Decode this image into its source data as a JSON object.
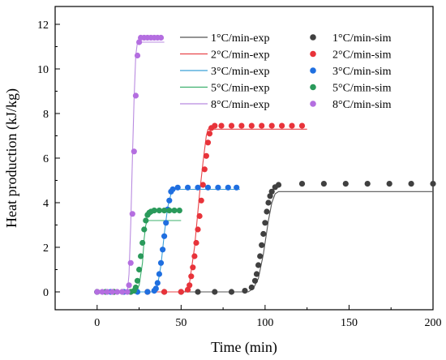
{
  "chart_data": {
    "type": "scatter",
    "xlabel": "Time (min)",
    "ylabel": "Heat production (kJ/kg)",
    "xlim": [
      -25,
      200
    ],
    "ylim": [
      -0.8,
      12.8
    ],
    "xticks": [
      0,
      50,
      100,
      150,
      200
    ],
    "yticks": [
      0,
      2,
      4,
      6,
      8,
      10,
      12
    ],
    "x_tick_labels": [
      "0",
      "50",
      "100",
      "150",
      "200"
    ],
    "y_tick_labels": [
      "0",
      "2",
      "4",
      "6",
      "8",
      "10",
      "12"
    ],
    "grid": false,
    "legend_placement": "top",
    "series": [
      {
        "name": "1°C/min-exp",
        "kind": "line",
        "color": "#555555",
        "points": [
          [
            0,
            0
          ],
          [
            90,
            0
          ],
          [
            93,
            0.15
          ],
          [
            96,
            0.6
          ],
          [
            99,
            1.7
          ],
          [
            102,
            3.2
          ],
          [
            104,
            4.0
          ],
          [
            106,
            4.4
          ],
          [
            108,
            4.5
          ],
          [
            200,
            4.5
          ]
        ]
      },
      {
        "name": "2°C/min-exp",
        "kind": "line",
        "color": "#e8454a",
        "points": [
          [
            0,
            0
          ],
          [
            52,
            0
          ],
          [
            55,
            0.4
          ],
          [
            58,
            2.0
          ],
          [
            61,
            4.4
          ],
          [
            63,
            5.8
          ],
          [
            65,
            7.0
          ],
          [
            66,
            7.3
          ],
          [
            125,
            7.3
          ]
        ]
      },
      {
        "name": "3°C/min-exp",
        "kind": "line",
        "color": "#3aa0d8",
        "points": [
          [
            0,
            0
          ],
          [
            34,
            0
          ],
          [
            36,
            0.3
          ],
          [
            38,
            1.2
          ],
          [
            40,
            2.6
          ],
          [
            42,
            3.8
          ],
          [
            44,
            4.4
          ],
          [
            45,
            4.6
          ],
          [
            85,
            4.6
          ]
        ]
      },
      {
        "name": "5°C/min-exp",
        "kind": "line",
        "color": "#3db06e",
        "points": [
          [
            0,
            0
          ],
          [
            23,
            0
          ],
          [
            25,
            0.3
          ],
          [
            27,
            1.3
          ],
          [
            28,
            2.4
          ],
          [
            29,
            3.0
          ],
          [
            30,
            3.2
          ],
          [
            50,
            3.2
          ]
        ]
      },
      {
        "name": "8°C/min-exp",
        "kind": "line",
        "color": "#b98be0",
        "points": [
          [
            0,
            0
          ],
          [
            18,
            0
          ],
          [
            19,
            0.8
          ],
          [
            20,
            3.0
          ],
          [
            21,
            6.0
          ],
          [
            22,
            8.6
          ],
          [
            23,
            10.6
          ],
          [
            24,
            11.2
          ],
          [
            25,
            11.2
          ],
          [
            40,
            11.2
          ]
        ]
      },
      {
        "name": "1°C/min-sim",
        "kind": "marker",
        "color": "#404040",
        "points": [
          [
            0,
            0
          ],
          [
            10,
            0
          ],
          [
            20,
            0
          ],
          [
            30,
            0
          ],
          [
            40,
            0
          ],
          [
            50,
            0
          ],
          [
            60,
            0
          ],
          [
            70,
            0
          ],
          [
            80,
            0
          ],
          [
            88,
            0.05
          ],
          [
            92,
            0.2
          ],
          [
            94,
            0.5
          ],
          [
            95,
            0.8
          ],
          [
            96,
            1.2
          ],
          [
            97,
            1.6
          ],
          [
            98,
            2.1
          ],
          [
            99,
            2.6
          ],
          [
            100,
            3.1
          ],
          [
            101,
            3.6
          ],
          [
            102,
            4.0
          ],
          [
            103,
            4.3
          ],
          [
            104,
            4.5
          ],
          [
            106,
            4.7
          ],
          [
            108,
            4.8
          ],
          [
            122,
            4.85
          ],
          [
            135,
            4.85
          ],
          [
            148,
            4.85
          ],
          [
            161,
            4.85
          ],
          [
            174,
            4.85
          ],
          [
            187,
            4.85
          ],
          [
            200,
            4.85
          ]
        ]
      },
      {
        "name": "2°C/min-sim",
        "kind": "marker",
        "color": "#e8333a",
        "points": [
          [
            0,
            0
          ],
          [
            10,
            0
          ],
          [
            20,
            0
          ],
          [
            30,
            0
          ],
          [
            40,
            0
          ],
          [
            50,
            0
          ],
          [
            54,
            0.1
          ],
          [
            55,
            0.3
          ],
          [
            56,
            0.7
          ],
          [
            57,
            1.1
          ],
          [
            58,
            1.6
          ],
          [
            59,
            2.2
          ],
          [
            60,
            2.8
          ],
          [
            61,
            3.4
          ],
          [
            62,
            4.1
          ],
          [
            63,
            4.8
          ],
          [
            64,
            5.5
          ],
          [
            65,
            6.1
          ],
          [
            66,
            6.7
          ],
          [
            67,
            7.1
          ],
          [
            68,
            7.35
          ],
          [
            70,
            7.45
          ],
          [
            74,
            7.45
          ],
          [
            80,
            7.45
          ],
          [
            86,
            7.45
          ],
          [
            92,
            7.45
          ],
          [
            98,
            7.45
          ],
          [
            104,
            7.45
          ],
          [
            110,
            7.45
          ],
          [
            116,
            7.45
          ],
          [
            122,
            7.45
          ]
        ]
      },
      {
        "name": "3°C/min-sim",
        "kind": "marker",
        "color": "#1f6fe0",
        "points": [
          [
            0,
            0
          ],
          [
            8,
            0
          ],
          [
            16,
            0
          ],
          [
            24,
            0
          ],
          [
            30,
            0
          ],
          [
            34,
            0.05
          ],
          [
            35,
            0.15
          ],
          [
            36,
            0.4
          ],
          [
            37,
            0.8
          ],
          [
            38,
            1.3
          ],
          [
            39,
            1.9
          ],
          [
            40,
            2.5
          ],
          [
            41,
            3.1
          ],
          [
            42,
            3.7
          ],
          [
            43,
            4.1
          ],
          [
            44,
            4.5
          ],
          [
            45,
            4.6
          ],
          [
            48,
            4.68
          ],
          [
            54,
            4.68
          ],
          [
            60,
            4.68
          ],
          [
            66,
            4.68
          ],
          [
            72,
            4.68
          ],
          [
            78,
            4.68
          ],
          [
            83,
            4.68
          ]
        ]
      },
      {
        "name": "5°C/min-sim",
        "kind": "marker",
        "color": "#2a9a5b",
        "points": [
          [
            0,
            0
          ],
          [
            5,
            0
          ],
          [
            10,
            0
          ],
          [
            15,
            0
          ],
          [
            20,
            0
          ],
          [
            22,
            0.05
          ],
          [
            23,
            0.2
          ],
          [
            24,
            0.5
          ],
          [
            25,
            1.0
          ],
          [
            26,
            1.6
          ],
          [
            27,
            2.2
          ],
          [
            28,
            2.8
          ],
          [
            29,
            3.2
          ],
          [
            30,
            3.45
          ],
          [
            31,
            3.55
          ],
          [
            32,
            3.6
          ],
          [
            34,
            3.65
          ],
          [
            37,
            3.65
          ],
          [
            40,
            3.65
          ],
          [
            43,
            3.65
          ],
          [
            46,
            3.65
          ],
          [
            49,
            3.65
          ]
        ]
      },
      {
        "name": "8°C/min-sim",
        "kind": "marker",
        "color": "#b46ee0",
        "points": [
          [
            0,
            0
          ],
          [
            3,
            0
          ],
          [
            6,
            0
          ],
          [
            9,
            0
          ],
          [
            12,
            0
          ],
          [
            15,
            0
          ],
          [
            18,
            0
          ],
          [
            19,
            0.3
          ],
          [
            20,
            1.3
          ],
          [
            21,
            3.5
          ],
          [
            22,
            6.3
          ],
          [
            23,
            8.8
          ],
          [
            24,
            10.6
          ],
          [
            25,
            11.2
          ],
          [
            26,
            11.4
          ],
          [
            28,
            11.4
          ],
          [
            30,
            11.4
          ],
          [
            32,
            11.4
          ],
          [
            34,
            11.4
          ],
          [
            36,
            11.4
          ],
          [
            38,
            11.4
          ]
        ]
      }
    ]
  }
}
